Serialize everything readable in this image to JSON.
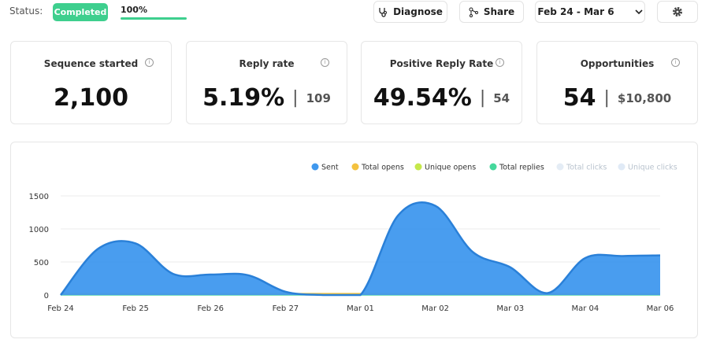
{
  "header": {
    "status_label": "Status:",
    "status": "Completed",
    "progress": "100%",
    "buttons": [
      "Diagnose",
      "Share"
    ],
    "date_range": "Feb 24 - Mar 6"
  },
  "cards": [
    {
      "label": "Sequence started",
      "value": "2,100"
    },
    {
      "label": "Reply rate",
      "value": "5.19%",
      "secondary": "109"
    },
    {
      "label": "Positive Reply Rate",
      "value": "49.54%",
      "secondary": "54"
    },
    {
      "label": "Opportunities",
      "value": "54",
      "secondary": "$10,800"
    }
  ],
  "chart_data": {
    "type": "area",
    "categories": [
      "Feb 24",
      null,
      "Feb 25",
      null,
      "Feb 26",
      null,
      "Feb 27",
      null,
      "Mar 01",
      null,
      "Mar 02",
      null,
      "Mar 03",
      null,
      "Mar 04",
      null,
      "Mar 06"
    ],
    "series": [
      {
        "name": "Sent",
        "color": "#3f98ee",
        "values": [
          0,
          700,
          780,
          320,
          310,
          300,
          50,
          0,
          0,
          1200,
          1350,
          650,
          420,
          30,
          560,
          590,
          600
        ]
      },
      {
        "name": "Total opens",
        "color": "#f4c23f",
        "values": [
          20,
          20,
          20,
          20,
          20,
          20,
          20,
          20,
          20,
          20,
          20,
          20,
          20,
          20,
          20,
          20,
          20
        ]
      },
      {
        "name": "Unique opens",
        "color": "#c5e84b",
        "values": [
          12,
          12,
          12,
          12,
          12,
          12,
          12,
          12,
          12,
          12,
          12,
          12,
          12,
          12,
          12,
          12,
          12
        ]
      },
      {
        "name": "Total replies",
        "color": "#45d89c",
        "values": [
          4,
          4,
          4,
          4,
          4,
          4,
          4,
          4,
          4,
          4,
          4,
          4,
          4,
          4,
          4,
          4,
          4
        ]
      },
      {
        "name": "Total clicks",
        "color": "#e4ecf5",
        "values": [
          0,
          0,
          0,
          0,
          0,
          0,
          0,
          0,
          0,
          0,
          0,
          0,
          0,
          0,
          0,
          0,
          0
        ]
      },
      {
        "name": "Unique clicks",
        "color": "#e0eaf6",
        "values": [
          0,
          0,
          0,
          0,
          0,
          0,
          0,
          0,
          0,
          0,
          0,
          0,
          0,
          0,
          0,
          0,
          0
        ]
      }
    ],
    "ylim": [
      0,
      1500
    ],
    "yticks": [
      0,
      500,
      1000,
      1500
    ],
    "grid": true,
    "legend": "top-right"
  }
}
